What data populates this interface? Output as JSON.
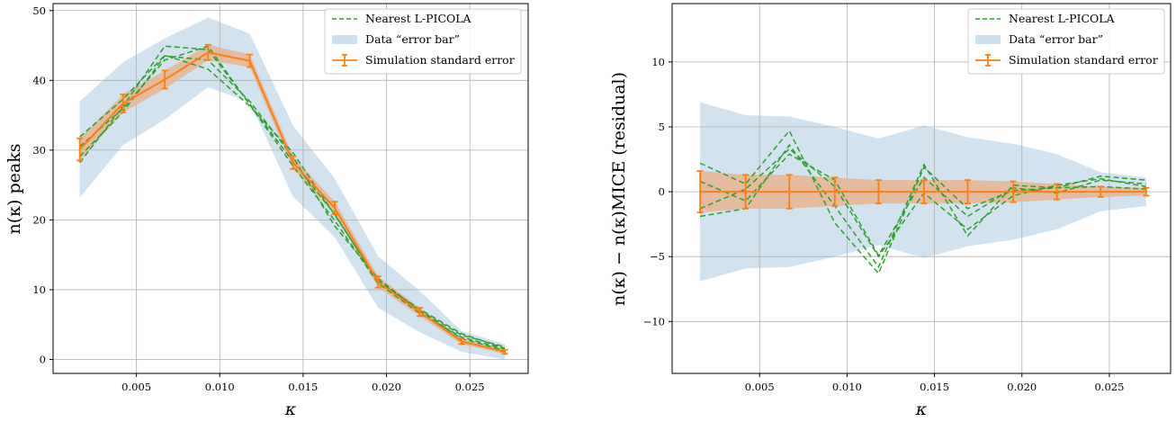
{
  "chart_data": [
    {
      "type": "line",
      "xlabel": "κ",
      "ylabel": "n(κ) peaks",
      "xlim": [
        0.0,
        0.0285
      ],
      "ylim": [
        -2,
        51
      ],
      "xticks": [
        0.005,
        0.01,
        0.015,
        0.02,
        0.025
      ],
      "xtick_labels": [
        "0.005",
        "0.010",
        "0.015",
        "0.020",
        "0.025"
      ],
      "yticks": [
        0,
        10,
        20,
        30,
        40,
        50
      ],
      "ytick_labels": [
        "0",
        "10",
        "20",
        "30",
        "40",
        "50"
      ],
      "grid": true,
      "legend": "top-right",
      "legend_entries": [
        "Nearest L-PICOLA",
        "Data “error bar”",
        "Simulation standard error"
      ],
      "x": [
        0.0016,
        0.0042,
        0.0067,
        0.0093,
        0.0118,
        0.0144,
        0.0169,
        0.0195,
        0.022,
        0.0245,
        0.0271
      ],
      "series": [
        {
          "name": "Simulation standard error",
          "style": "errorbar",
          "values": [
            30.1,
            36.7,
            40.1,
            44.0,
            42.8,
            28.2,
            21.7,
            11.1,
            6.8,
            2.6,
            1.1
          ],
          "errors": [
            1.6,
            1.3,
            1.3,
            1.1,
            0.9,
            0.9,
            0.9,
            0.8,
            0.6,
            0.4,
            0.3
          ]
        },
        {
          "name": "Nearest L-PICOLA",
          "style": "dashed",
          "values": [
            31.9,
            37.3,
            43.6,
            41.6,
            36.3,
            29.6,
            20.7,
            11.3,
            7.0,
            3.5,
            1.8
          ]
        },
        {
          "style": "dashed",
          "values": [
            30.5,
            36.0,
            42.9,
            44.9,
            36.5,
            27.7,
            19.9,
            10.9,
            6.6,
            3.2,
            1.5
          ]
        },
        {
          "style": "dashed",
          "values": [
            29.1,
            35.5,
            43.5,
            42.9,
            37.0,
            29.0,
            19.1,
            11.6,
            6.9,
            3.0,
            1.3
          ]
        },
        {
          "style": "dashed",
          "values": [
            28.2,
            36.3,
            44.9,
            44.4,
            36.6,
            28.3,
            20.8,
            11.1,
            7.2,
            3.7,
            1.6
          ]
        }
      ],
      "data_band": {
        "lower": [
          23.2,
          30.7,
          34.4,
          39.0,
          36.9,
          23.3,
          17.5,
          7.4,
          3.9,
          1.1,
          0.0
        ],
        "upper": [
          37.0,
          42.6,
          46.0,
          49.0,
          46.7,
          33.5,
          25.9,
          14.8,
          9.8,
          4.1,
          2.2
        ]
      }
    },
    {
      "type": "line",
      "xlabel": "κ",
      "ylabel": "n(κ) − n(κ)MICE   (residual)",
      "xlim": [
        0.0,
        0.0285
      ],
      "ylim": [
        -14.0,
        14.5
      ],
      "xticks": [
        0.005,
        0.01,
        0.015,
        0.02,
        0.025
      ],
      "xtick_labels": [
        "0.005",
        "0.010",
        "0.015",
        "0.020",
        "0.025"
      ],
      "yticks": [
        -10,
        -5,
        0,
        5,
        10
      ],
      "ytick_labels": [
        "−10",
        "−5",
        "0",
        "5",
        "10"
      ],
      "grid": true,
      "legend": "top-right",
      "legend_entries": [
        "Nearest L-PICOLA",
        "Data “error bar”",
        "Simulation standard error"
      ],
      "x": [
        0.0016,
        0.0042,
        0.0067,
        0.0093,
        0.0118,
        0.0144,
        0.0169,
        0.0195,
        0.022,
        0.0245,
        0.0271
      ],
      "series": [
        {
          "name": "Simulation standard error",
          "style": "errorbar",
          "values": [
            0,
            0,
            0,
            0,
            0,
            0,
            0,
            0,
            0,
            0,
            0
          ],
          "errors": [
            1.6,
            1.3,
            1.3,
            1.1,
            0.9,
            0.9,
            0.9,
            0.8,
            0.6,
            0.4,
            0.3
          ]
        },
        {
          "name": "Nearest L-PICOLA",
          "style": "dashed",
          "values": [
            2.2,
            0.6,
            4.7,
            -2.4,
            -6.3,
            1.9,
            -1.3,
            0.1,
            0.3,
            1.2,
            0.9
          ]
        },
        {
          "style": "dashed",
          "values": [
            0.8,
            -0.7,
            2.9,
            0.9,
            -4.9,
            1.1,
            -1.9,
            0.3,
            -0.1,
            0.9,
            0.6
          ]
        },
        {
          "style": "dashed",
          "values": [
            -1.9,
            -1.3,
            3.6,
            -1.1,
            -5.8,
            2.1,
            -3.4,
            0.5,
            0.3,
            0.4,
            0.2
          ]
        },
        {
          "style": "dashed",
          "values": [
            -1.3,
            0.2,
            3.3,
            0.4,
            -5.0,
            -0.1,
            -2.9,
            -0.3,
            0.5,
            1.0,
            0.4
          ]
        }
      ],
      "data_band": {
        "lower": [
          -6.9,
          -5.9,
          -5.8,
          -5.0,
          -4.1,
          -5.1,
          -4.2,
          -3.7,
          -2.9,
          -1.5,
          -1.1
        ],
        "upper": [
          6.9,
          5.9,
          5.8,
          5.0,
          4.1,
          5.1,
          4.2,
          3.7,
          2.9,
          1.5,
          1.1
        ]
      }
    }
  ],
  "colors": {
    "simulation": "#ff7f0e",
    "simulation_band": "#e8b48f",
    "lpicola": "#2ca02c",
    "data_band": "#a6c8e0",
    "grid": "#b0b0b0"
  }
}
